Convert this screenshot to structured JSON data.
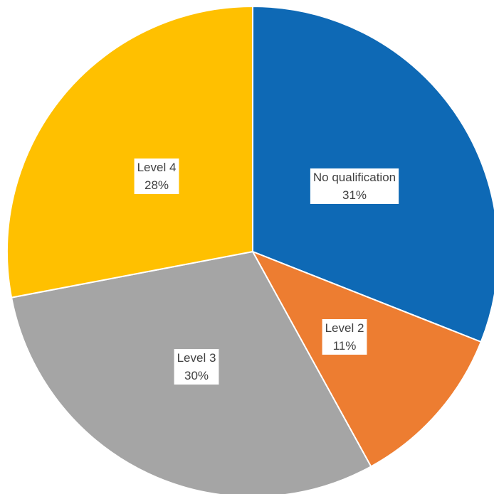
{
  "chart_data": {
    "type": "pie",
    "slices": [
      {
        "label": "No qualification",
        "value": 31,
        "value_label": "31%",
        "color": "#0E69B5"
      },
      {
        "label": "Level 2",
        "value": 11,
        "value_label": "11%",
        "color": "#ED7D31"
      },
      {
        "label": "Level 3",
        "value": 30,
        "value_label": "30%",
        "color": "#A5A5A5"
      },
      {
        "label": "Level 4",
        "value": 28,
        "value_label": "28%",
        "color": "#FFC000"
      }
    ],
    "start_angle": "12 o'clock",
    "direction": "clockwise",
    "legend": "none",
    "data_labels": "inside, category name and percentage on white boxes"
  }
}
